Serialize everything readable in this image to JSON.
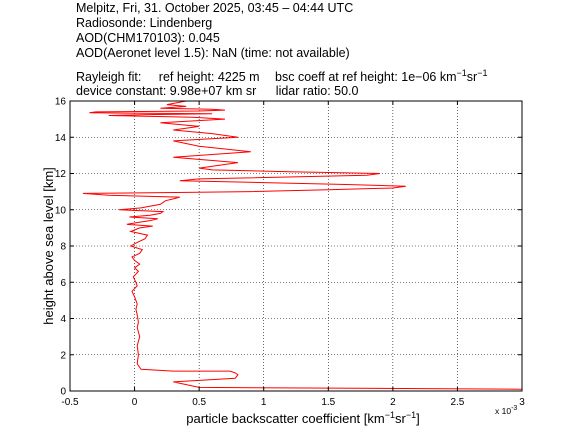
{
  "header": {
    "line1": "Melpitz, Fri, 31. October 2025, 03:45 – 04:44 UTC",
    "line2": "Radiosonde: Lindenberg",
    "line3": "AOD(CHM170103): 0.045",
    "line4": "AOD(Aeronet level 1.5): NaN   (time: not available)",
    "rayleigh_label": "Rayleigh fit:",
    "ref_height": "ref height: 4225 m",
    "bsc_coeff_prefix": "bsc coeff at ref height: 1e−06 km",
    "bsc_coeff_exp1": "−1",
    "bsc_coeff_mid": "sr",
    "bsc_coeff_exp2": "−1",
    "device_constant": "device constant: 9.98e+07 km sr",
    "lidar_ratio": "lidar ratio: 50.0"
  },
  "chart_data": {
    "type": "line",
    "xlabel_prefix": "particle backscatter coefficient [km",
    "xlabel_exp1": "−1",
    "xlabel_mid": "sr",
    "xlabel_exp2": "−1",
    "xlabel_suffix": "]",
    "ylabel": "height above sea level [km]",
    "x_multiplier": "x 10",
    "x_multiplier_exp": "-3",
    "xlim": [
      -0.5,
      3
    ],
    "ylim": [
      0,
      16
    ],
    "x_ticks": [
      "-0.5",
      "0",
      "0.5",
      "1",
      "1.5",
      "2",
      "2.5",
      "3"
    ],
    "y_ticks": [
      "0",
      "2",
      "4",
      "6",
      "8",
      "10",
      "12",
      "14",
      "16"
    ],
    "grid": true,
    "line_color": "#ff0000",
    "series": [
      {
        "x": [
          3.0,
          0.5,
          0.3,
          0.78,
          0.8,
          0.78,
          0.74,
          0.3,
          0.05,
          0.02,
          0.03,
          0.02,
          0.04,
          0.02,
          0.03,
          0.02,
          0.01,
          0.02,
          0.01,
          0.0,
          -0.02,
          0.02,
          0.01,
          -0.01,
          0.03,
          0.0,
          0.04,
          0.0,
          -0.02,
          0.04,
          0.06,
          -0.03,
          0.02,
          0.08,
          0.1,
          -0.03,
          0.04,
          0.14,
          -0.06,
          0.03,
          0.12,
          0.18,
          -0.04,
          0.12,
          0.2,
          0.22,
          -0.12,
          0.05,
          0.2,
          0.24,
          0.3,
          0.35,
          -0.2,
          -0.4,
          0.32,
          0.9,
          1.5,
          2.0,
          2.1,
          1.6,
          1.0,
          0.35,
          0.5,
          1.8,
          1.9,
          1.2,
          0.6,
          0.5,
          0.8,
          0.3,
          0.9,
          0.5,
          0.3,
          0.8,
          0.6,
          0.3,
          0.5,
          0.2,
          0.7,
          0.45,
          -0.2,
          0.1,
          0.6,
          -0.35,
          -0.3,
          0.5,
          0.7,
          0.6,
          0.2,
          0.4,
          0.25,
          0.4
        ],
        "y": [
          0.1,
          0.2,
          0.5,
          0.7,
          0.9,
          1.0,
          1.1,
          1.1,
          1.2,
          1.5,
          2.0,
          2.5,
          3.0,
          3.5,
          3.8,
          4.2,
          4.5,
          4.8,
          5.0,
          5.2,
          5.5,
          5.8,
          6.0,
          6.3,
          6.6,
          6.8,
          7.0,
          7.2,
          7.4,
          7.6,
          7.8,
          8.0,
          8.2,
          8.4,
          8.6,
          8.8,
          9.0,
          9.1,
          9.2,
          9.3,
          9.4,
          9.5,
          9.6,
          9.7,
          9.8,
          9.9,
          10.0,
          10.1,
          10.3,
          10.5,
          10.6,
          10.7,
          10.8,
          10.9,
          10.95,
          11.0,
          11.1,
          11.2,
          11.3,
          11.4,
          11.5,
          11.6,
          11.7,
          11.9,
          12.0,
          12.1,
          12.2,
          12.3,
          12.6,
          12.9,
          13.2,
          13.5,
          13.8,
          14.0,
          14.2,
          14.4,
          14.6,
          14.8,
          15.0,
          15.1,
          15.2,
          15.25,
          15.3,
          15.35,
          15.4,
          15.45,
          15.5,
          15.55,
          15.6,
          15.7,
          15.8,
          16.0
        ]
      }
    ]
  }
}
